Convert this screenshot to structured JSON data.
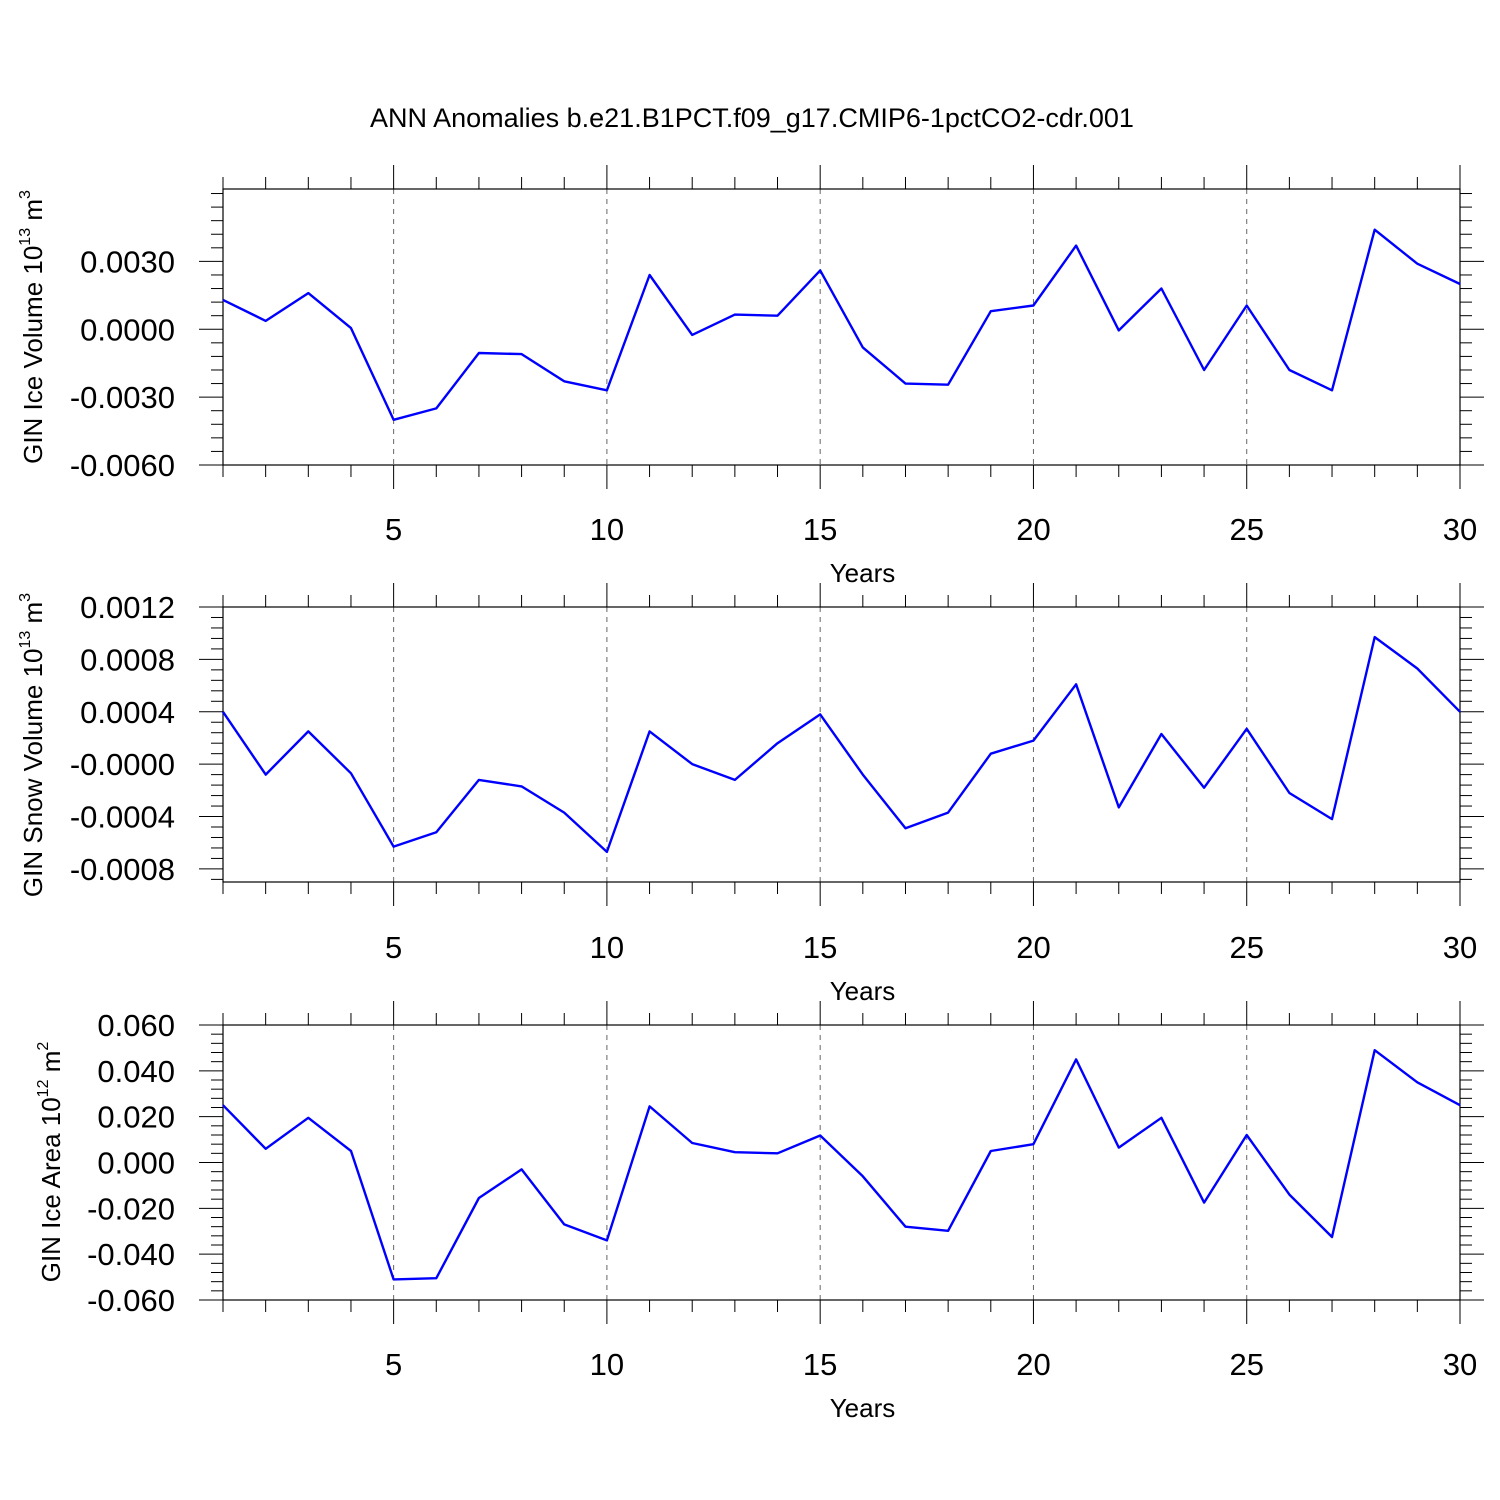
{
  "figure": {
    "title": "ANN Anomalies b.e21.B1PCT.f09_g17.CMIP6-1pctCO2-cdr.001"
  },
  "colors": {
    "series": "#0000ff",
    "axis": "#000000",
    "grid": "#666666"
  },
  "chart_data": [
    {
      "type": "line",
      "id": "ice-volume",
      "xlabel": "Years",
      "ylabel_main": "GIN Ice Volume 10",
      "ylabel_sup": "13",
      "ylabel_unit": " m",
      "ylabel_unit_sup": "3",
      "xlim": [
        1,
        30
      ],
      "ylim": [
        -0.006,
        0.0062
      ],
      "xticks": [
        5,
        10,
        15,
        20,
        25,
        30
      ],
      "xtick_labels": [
        "5",
        "10",
        "15",
        "20",
        "25",
        "30"
      ],
      "yticks": [
        -0.006,
        -0.003,
        0.0,
        0.003
      ],
      "ytick_labels": [
        "-0.0060",
        "-0.0030",
        "0.0000",
        "0.0030"
      ],
      "grid": "vertical dashed at major x ticks",
      "x": [
        1,
        2,
        3,
        4,
        5,
        6,
        7,
        8,
        9,
        10,
        11,
        12,
        13,
        14,
        15,
        16,
        17,
        18,
        19,
        20,
        21,
        22,
        23,
        24,
        25,
        26,
        27,
        28,
        29,
        30
      ],
      "series": [
        {
          "values": [
            0.0013,
            0.00037,
            0.0016,
            5e-05,
            -0.004,
            -0.0035,
            -0.00105,
            -0.0011,
            -0.0023,
            -0.0027,
            0.0024,
            -0.00025,
            0.00065,
            0.0006,
            0.0026,
            -0.0008,
            -0.0024,
            -0.00245,
            0.0008,
            0.00105,
            0.0037,
            -5e-05,
            0.0018,
            -0.0018,
            0.00105,
            -0.0018,
            -0.0027,
            0.0044,
            0.0029,
            0.002
          ]
        }
      ]
    },
    {
      "type": "line",
      "id": "snow-volume",
      "xlabel": "Years",
      "ylabel_main": "GIN Snow Volume 10",
      "ylabel_sup": "13",
      "ylabel_unit": " m",
      "ylabel_unit_sup": "3",
      "xlim": [
        1,
        30
      ],
      "ylim": [
        -0.0009,
        0.0012
      ],
      "xticks": [
        5,
        10,
        15,
        20,
        25,
        30
      ],
      "xtick_labels": [
        "5",
        "10",
        "15",
        "20",
        "25",
        "30"
      ],
      "yticks": [
        -0.0008,
        -0.0004,
        0.0,
        0.0004,
        0.0008,
        0.0012
      ],
      "ytick_labels": [
        "-0.0008",
        "-0.0004",
        "-0.0000",
        "0.0004",
        "0.0008",
        "0.0012"
      ],
      "grid": "vertical dashed at major x ticks",
      "x": [
        1,
        2,
        3,
        4,
        5,
        6,
        7,
        8,
        9,
        10,
        11,
        12,
        13,
        14,
        15,
        16,
        17,
        18,
        19,
        20,
        21,
        22,
        23,
        24,
        25,
        26,
        27,
        28,
        29,
        30
      ],
      "series": [
        {
          "values": [
            0.0004,
            -8e-05,
            0.00025,
            -7e-05,
            -0.00063,
            -0.00052,
            -0.00012,
            -0.00017,
            -0.00037,
            -0.00067,
            0.00025,
            0.0,
            -0.00012,
            0.00016,
            0.00038,
            -8e-05,
            -0.00049,
            -0.00037,
            8e-05,
            0.00018,
            0.00061,
            -0.00033,
            0.00023,
            -0.00018,
            0.00027,
            -0.00022,
            -0.00042,
            0.00097,
            0.00073,
            0.0004
          ]
        }
      ]
    },
    {
      "type": "line",
      "id": "ice-area",
      "xlabel": "Years",
      "ylabel_main": "GIN Ice Area 10",
      "ylabel_sup": "12",
      "ylabel_unit": " m",
      "ylabel_unit_sup": "2",
      "xlim": [
        1,
        30
      ],
      "ylim": [
        -0.06,
        0.06
      ],
      "xticks": [
        5,
        10,
        15,
        20,
        25,
        30
      ],
      "xtick_labels": [
        "5",
        "10",
        "15",
        "20",
        "25",
        "30"
      ],
      "yticks": [
        -0.06,
        -0.04,
        -0.02,
        0.0,
        0.02,
        0.04,
        0.06
      ],
      "ytick_labels": [
        "-0.060",
        "-0.040",
        "-0.020",
        "0.000",
        "0.020",
        "0.040",
        "0.060"
      ],
      "grid": "vertical dashed at major x ticks",
      "x": [
        1,
        2,
        3,
        4,
        5,
        6,
        7,
        8,
        9,
        10,
        11,
        12,
        13,
        14,
        15,
        16,
        17,
        18,
        19,
        20,
        21,
        22,
        23,
        24,
        25,
        26,
        27,
        28,
        29,
        30
      ],
      "series": [
        {
          "values": [
            0.025,
            0.006,
            0.0195,
            0.005,
            -0.051,
            -0.0505,
            -0.0155,
            -0.003,
            -0.027,
            -0.034,
            0.0245,
            0.0085,
            0.0045,
            0.004,
            0.0118,
            -0.006,
            -0.028,
            -0.0298,
            0.005,
            0.008,
            0.045,
            0.0065,
            0.0195,
            -0.0175,
            0.012,
            -0.014,
            -0.0325,
            0.049,
            0.035,
            0.025
          ]
        }
      ]
    }
  ]
}
